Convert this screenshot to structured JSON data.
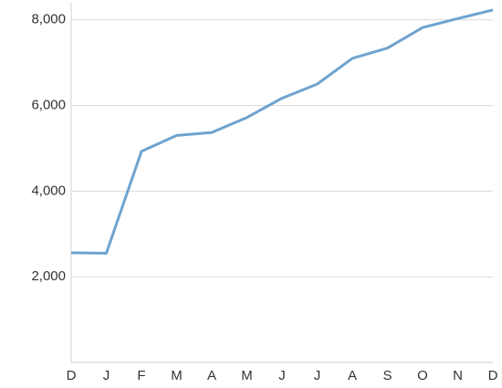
{
  "chart_data": {
    "type": "line",
    "categories": [
      "D",
      "J",
      "F",
      "M",
      "A",
      "M",
      "J",
      "J",
      "A",
      "S",
      "O",
      "N",
      "D"
    ],
    "series": [
      {
        "color": "#6fa3cf",
        "values": [
          2560,
          2550,
          4930,
          5300,
          5370,
          5720,
          6170,
          6500,
          7100,
          7340,
          7820,
          8030,
          8230
        ]
      }
    ],
    "ylim": [
      0,
      8400
    ],
    "yticks": [
      {
        "value": 2000,
        "label": "2,000"
      },
      {
        "value": 4000,
        "label": "4,000"
      },
      {
        "value": 6000,
        "label": "6,000"
      },
      {
        "value": 8000,
        "label": "8,000"
      }
    ],
    "grid": true
  }
}
